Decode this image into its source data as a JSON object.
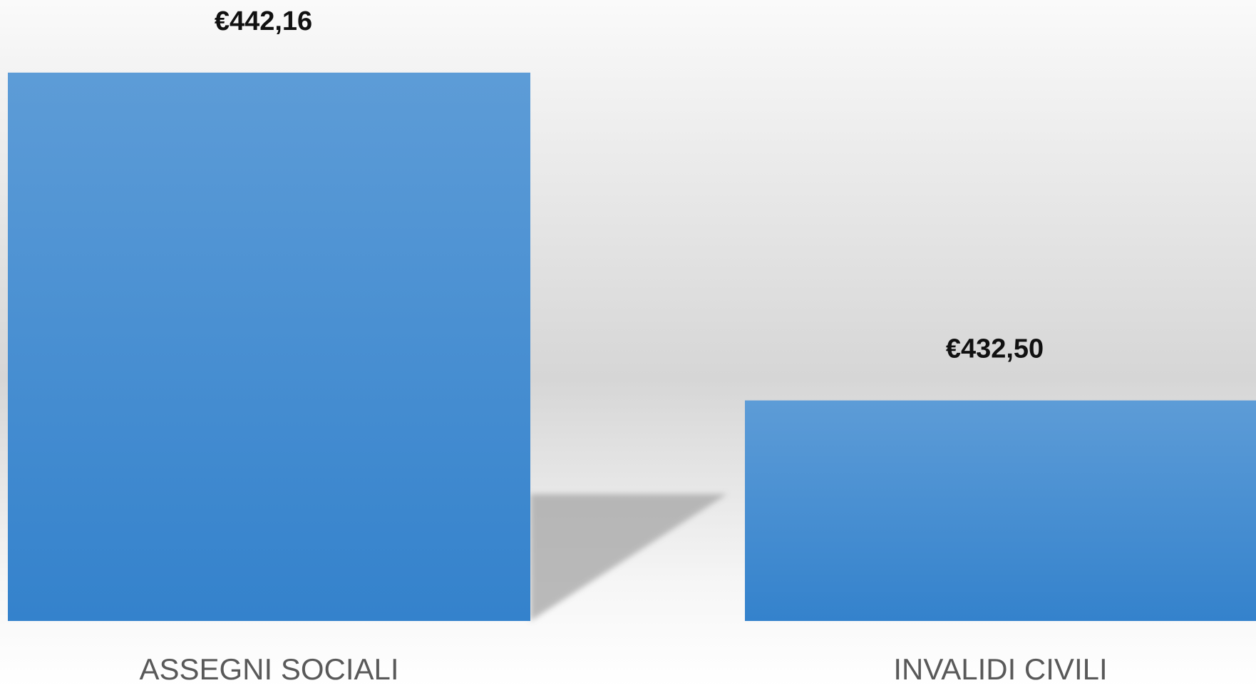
{
  "chart_data": {
    "type": "bar",
    "categories": [
      "ASSEGNI SOCIALI",
      "INVALIDI CIVILI"
    ],
    "values": [
      442.16,
      432.5
    ],
    "value_labels": [
      "€442,16",
      "€432,50"
    ],
    "color": "#4a90d6",
    "ylim": [
      426,
      444.3
    ]
  }
}
